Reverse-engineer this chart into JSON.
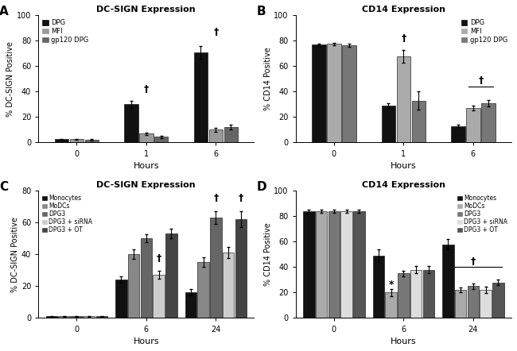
{
  "panel_A": {
    "title": "DC-SIGN Expression",
    "ylabel": "% DC-SIGN Positive",
    "xlabel": "Hours",
    "xtick_labels": [
      "0",
      "1",
      "6"
    ],
    "ylim": [
      0,
      100
    ],
    "yticks": [
      0,
      20,
      40,
      60,
      80,
      100
    ],
    "groups": [
      "DPG",
      "MFI",
      "gp120 DPG"
    ],
    "colors": [
      "#111111",
      "#999999",
      "#666666"
    ],
    "data": {
      "0": [
        2.5,
        2.5,
        2.0
      ],
      "1": [
        30.0,
        7.0,
        4.5
      ],
      "6": [
        71.0,
        10.0,
        12.0
      ]
    },
    "errors": {
      "0": [
        0.5,
        0.5,
        0.5
      ],
      "1": [
        3.0,
        1.0,
        1.0
      ],
      "6": [
        5.0,
        1.5,
        2.0
      ]
    }
  },
  "panel_B": {
    "title": "CD14 Expression",
    "ylabel": "% CD14 Positive",
    "xlabel": "Hours",
    "xtick_labels": [
      "0",
      "1",
      "6"
    ],
    "ylim": [
      0,
      100
    ],
    "yticks": [
      0,
      20,
      40,
      60,
      80,
      100
    ],
    "groups": [
      "DPG",
      "MFI",
      "gp120 DPG"
    ],
    "colors": [
      "#111111",
      "#aaaaaa",
      "#777777"
    ],
    "data": {
      "0": [
        77.0,
        77.5,
        76.5
      ],
      "1": [
        29.0,
        68.0,
        33.0
      ],
      "6": [
        13.0,
        27.0,
        31.0
      ]
    },
    "errors": {
      "0": [
        1.0,
        1.0,
        1.5
      ],
      "1": [
        2.0,
        5.0,
        7.0
      ],
      "6": [
        1.0,
        2.0,
        2.5
      ]
    }
  },
  "panel_C": {
    "title": "DC-SIGN Expression",
    "ylabel": "% DC-SIGN Positive",
    "xlabel": "Hours",
    "xtick_labels": [
      "0",
      "6",
      "24"
    ],
    "ylim": [
      0,
      80
    ],
    "yticks": [
      0,
      20,
      40,
      60,
      80
    ],
    "groups": [
      "Monocytes",
      "MoDCs",
      "DPG3",
      "DPG3 + siRNA",
      "DPG3 + OT"
    ],
    "colors": [
      "#111111",
      "#888888",
      "#666666",
      "#cccccc",
      "#444444"
    ],
    "data": {
      "0": [
        1.0,
        1.0,
        1.0,
        1.0,
        1.0
      ],
      "6": [
        24.0,
        40.0,
        50.0,
        27.0,
        53.0
      ],
      "24": [
        16.0,
        35.0,
        63.0,
        41.0,
        62.0
      ]
    },
    "errors": {
      "0": [
        0.3,
        0.3,
        0.3,
        0.3,
        0.3
      ],
      "6": [
        2.0,
        3.0,
        2.5,
        2.5,
        3.0
      ],
      "24": [
        2.0,
        3.0,
        4.0,
        3.5,
        5.0
      ]
    }
  },
  "panel_D": {
    "title": "CD14 Expression",
    "ylabel": "% CD14 Positive",
    "xlabel": "Hours",
    "xtick_labels": [
      "0",
      "6",
      "24"
    ],
    "ylim": [
      0,
      100
    ],
    "yticks": [
      0,
      20,
      40,
      60,
      80,
      100
    ],
    "groups": [
      "Monocytes",
      "MoDCs",
      "DPG3",
      "DPG3 + siRNA",
      "DPG3 + OT"
    ],
    "colors": [
      "#111111",
      "#aaaaaa",
      "#777777",
      "#dddddd",
      "#555555"
    ],
    "data": {
      "0": [
        84.0,
        84.0,
        84.0,
        84.0,
        84.0
      ],
      "6": [
        49.0,
        20.0,
        35.0,
        38.0,
        38.0
      ],
      "24": [
        58.0,
        22.0,
        25.0,
        22.0,
        28.0
      ]
    },
    "errors": {
      "0": [
        1.5,
        1.5,
        1.5,
        1.5,
        1.5
      ],
      "6": [
        5.0,
        3.0,
        2.0,
        3.0,
        3.0
      ],
      "24": [
        4.0,
        2.0,
        2.0,
        2.5,
        2.0
      ]
    }
  }
}
